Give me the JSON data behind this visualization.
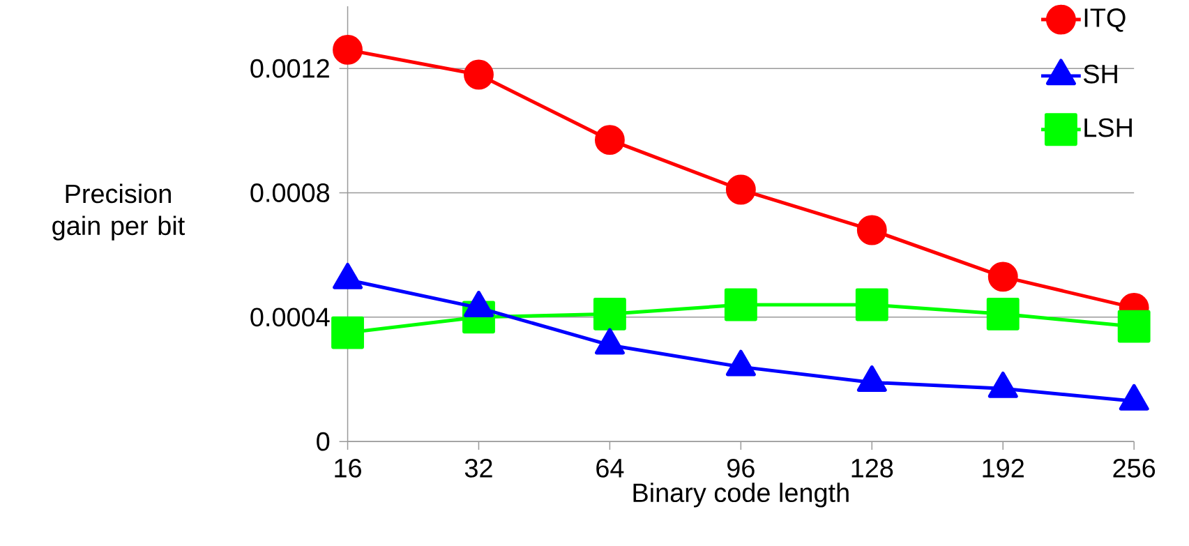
{
  "chart_data": {
    "type": "line",
    "xlabel": "Binary code length",
    "ylabel": "Precision gain per bit",
    "categories": [
      "16",
      "32",
      "64",
      "96",
      "128",
      "192",
      "256"
    ],
    "series": [
      {
        "name": "ITQ",
        "color": "#ff0000",
        "marker": "circle",
        "values": [
          0.00126,
          0.00118,
          0.00097,
          0.00081,
          0.00068,
          0.00053,
          0.00043
        ]
      },
      {
        "name": "SH",
        "color": "#0000ff",
        "marker": "triangle",
        "values": [
          0.00052,
          0.00043,
          0.00031,
          0.00024,
          0.00019,
          0.00017,
          0.00013
        ]
      },
      {
        "name": "LSH",
        "color": "#00ff00",
        "marker": "square",
        "values": [
          0.00035,
          0.0004,
          0.00041,
          0.00044,
          0.00044,
          0.00041,
          0.00037
        ]
      }
    ],
    "ylim": [
      0,
      0.0014
    ],
    "yticks": [
      0,
      {
        "value": 0.0004,
        "label": "0.0004"
      },
      {
        "value": 0.0008,
        "label": "0.0008"
      },
      {
        "value": 0.0012,
        "label": "0.0012"
      }
    ],
    "grid": "y",
    "legend": "top right",
    "line_style": "solid"
  }
}
